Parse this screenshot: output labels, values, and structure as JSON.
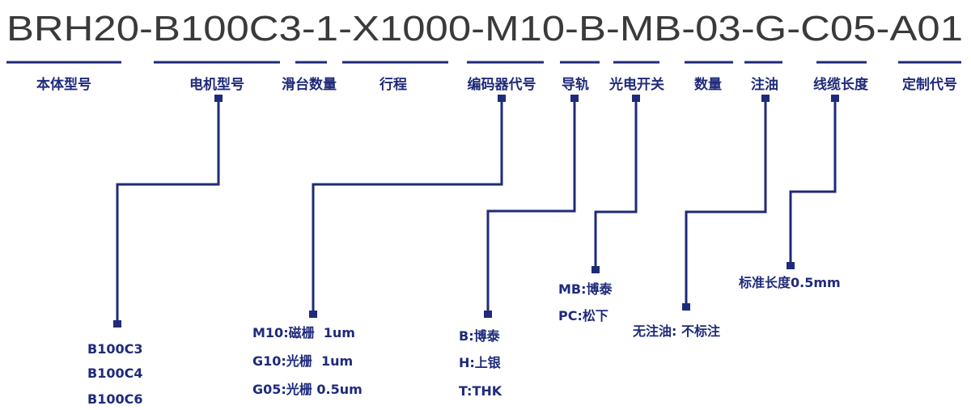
{
  "title": "BRH20-B100C3-1-X1000-M10-B-MB-03-G-C05-A01",
  "colors": {
    "accent": "#1f2a7a",
    "title": "#3a3a3a"
  },
  "segments": [
    {
      "label": "本体型号"
    },
    {
      "label": "电机型号",
      "options": [
        "B100C3",
        "B100C4",
        "B100C6"
      ]
    },
    {
      "label": "滑台数量"
    },
    {
      "label": "行程"
    },
    {
      "label": "编码器代号",
      "options": [
        "M10:磁栅  1um",
        "G10:光栅  1um",
        "G05:光栅 0.5um"
      ]
    },
    {
      "label": "导轨",
      "options": [
        "B:博泰",
        "H:上银",
        "T:THK"
      ]
    },
    {
      "label": "光电开关",
      "options": [
        "MB:博泰",
        "PC:松下"
      ]
    },
    {
      "label": "数量"
    },
    {
      "label": "注油",
      "options": [
        "无注油: 不标注"
      ]
    },
    {
      "label": "线缆长度",
      "options": [
        "标准长度0.5mm"
      ]
    },
    {
      "label": "定制代号"
    }
  ]
}
